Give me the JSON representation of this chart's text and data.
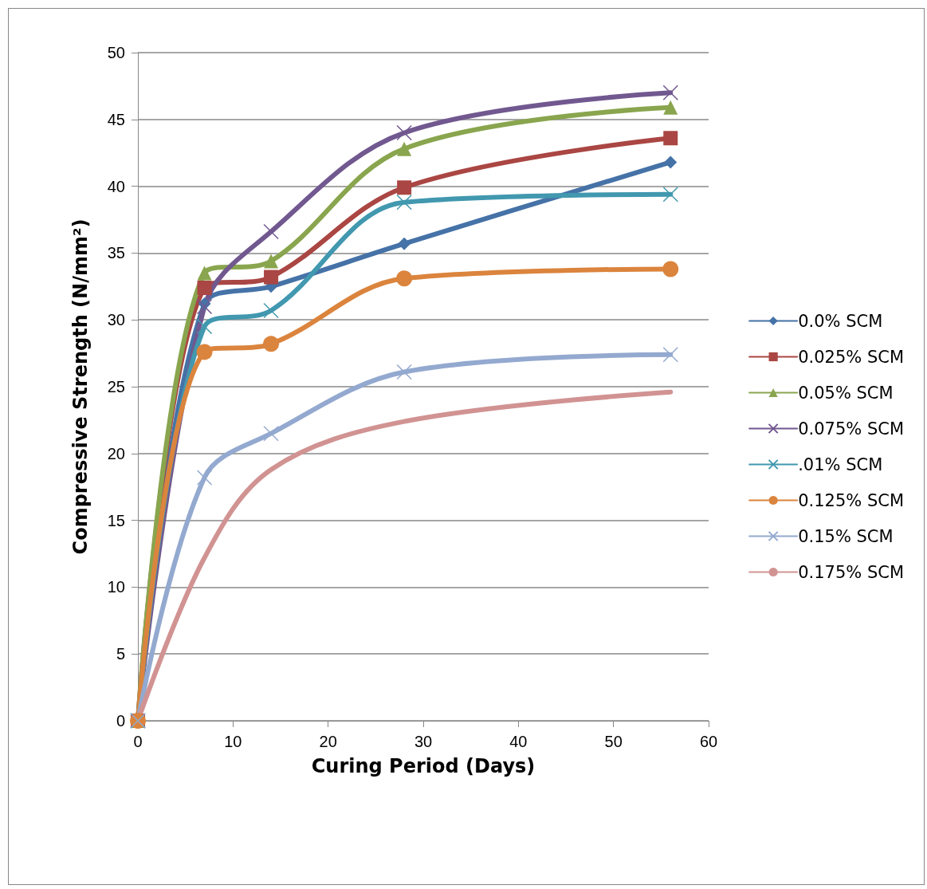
{
  "chart_data": {
    "type": "line",
    "xlabel": "Curing Period (Days)",
    "ylabel": "Compressive Strength (N/mm²)",
    "xlim": [
      0,
      60
    ],
    "xticks": [
      0,
      10,
      20,
      30,
      40,
      50,
      60
    ],
    "ylim": [
      0,
      50
    ],
    "yticks": [
      0,
      5,
      10,
      15,
      20,
      25,
      30,
      35,
      40,
      45,
      50
    ],
    "grid": "y",
    "legend": "right",
    "line_style": "solid",
    "series": [
      {
        "name": "0.0% SCM",
        "color": "#4572a7",
        "marker": "diamond",
        "x": [
          0,
          7,
          14,
          28,
          56
        ],
        "values": [
          0,
          31.2,
          32.5,
          35.7,
          41.8
        ]
      },
      {
        "name": "0.025% SCM",
        "color": "#aa4643",
        "marker": "square",
        "x": [
          0,
          7,
          14,
          28,
          56
        ],
        "values": [
          0,
          32.4,
          33.2,
          39.9,
          43.6
        ]
      },
      {
        "name": "0.05% SCM",
        "color": "#89a54e",
        "marker": "triangle",
        "x": [
          0,
          7,
          14,
          28,
          56
        ],
        "values": [
          0,
          33.5,
          34.4,
          42.8,
          45.9
        ]
      },
      {
        "name": "0.075% SCM",
        "color": "#71588f",
        "marker": "cross",
        "x": [
          0,
          7,
          14,
          28,
          56
        ],
        "values": [
          0,
          31.0,
          36.6,
          44.0,
          47.0
        ]
      },
      {
        "name": ".01% SCM",
        "color": "#4198af",
        "marker": "cross",
        "x": [
          0,
          7,
          14,
          28,
          56
        ],
        "values": [
          0,
          29.5,
          30.7,
          38.8,
          39.4
        ]
      },
      {
        "name": "0.125% SCM",
        "color": "#db843d",
        "marker": "circle",
        "x": [
          0,
          7,
          14,
          28,
          56
        ],
        "values": [
          0,
          27.6,
          28.2,
          33.1,
          33.8
        ]
      },
      {
        "name": "0.15% SCM",
        "color": "#93a9cf",
        "marker": "cross",
        "x": [
          0,
          7,
          14,
          28,
          56
        ],
        "values": [
          0,
          18.2,
          21.5,
          26.1,
          27.4
        ]
      },
      {
        "name": "0.175% SCM",
        "color": "#d19392",
        "marker": "none",
        "x": [
          0,
          7,
          14,
          28,
          56
        ],
        "values": [
          0,
          12.2,
          18.8,
          22.4,
          24.6
        ]
      }
    ]
  }
}
